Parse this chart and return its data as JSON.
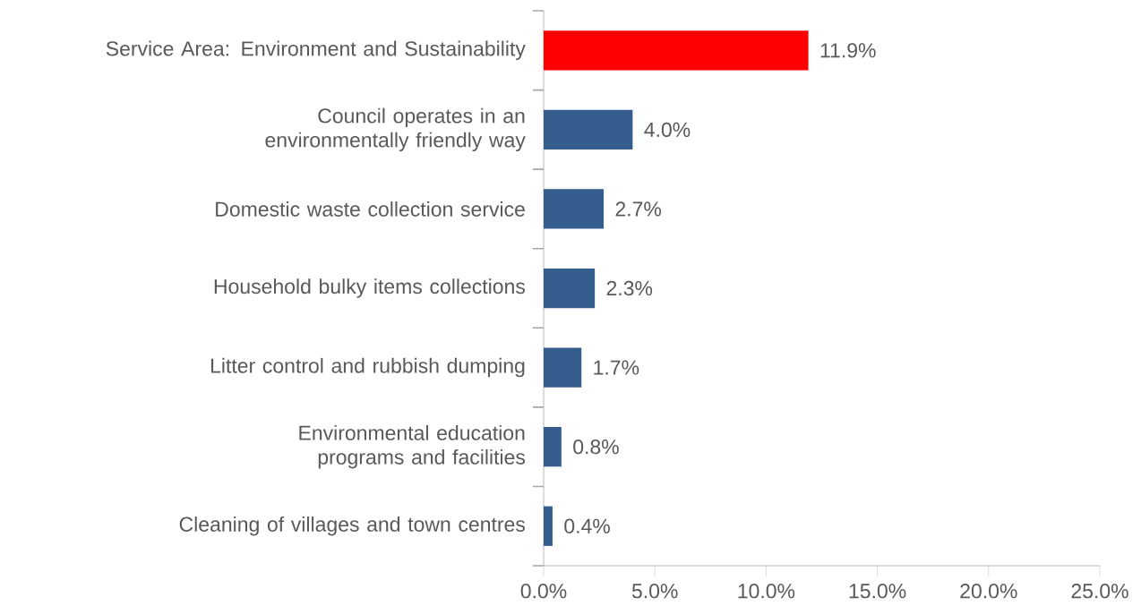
{
  "chart_data": {
    "type": "bar",
    "orientation": "horizontal",
    "categories": [
      "Service Area: Environment and Sustainability",
      "Council operates in an environmentally friendly way",
      "Domestic waste collection service",
      "Household bulky items collections",
      "Litter control and rubbish dumping",
      "Environmental education programs and facilities",
      "Cleaning of villages and town centres"
    ],
    "values": [
      11.9,
      4.0,
      2.7,
      2.3,
      1.7,
      0.8,
      0.4
    ],
    "colors": [
      "#ff0000",
      "#355e8f",
      "#355e8f",
      "#355e8f",
      "#355e8f",
      "#355e8f",
      "#355e8f"
    ],
    "value_labels": [
      "11.9%",
      "4.0%",
      "2.7%",
      "2.3%",
      "1.7%",
      "0.8%",
      "0.4%"
    ],
    "xlim": [
      0,
      25
    ],
    "xticks": [
      {
        "value": 0,
        "label": "0.0%"
      },
      {
        "value": 5,
        "label": "5.0%"
      },
      {
        "value": 10,
        "label": "10.0%"
      },
      {
        "value": 15,
        "label": "15.0%"
      },
      {
        "value": 20,
        "label": "20.0%"
      },
      {
        "value": 25,
        "label": "25.0%"
      }
    ],
    "grid": false
  }
}
